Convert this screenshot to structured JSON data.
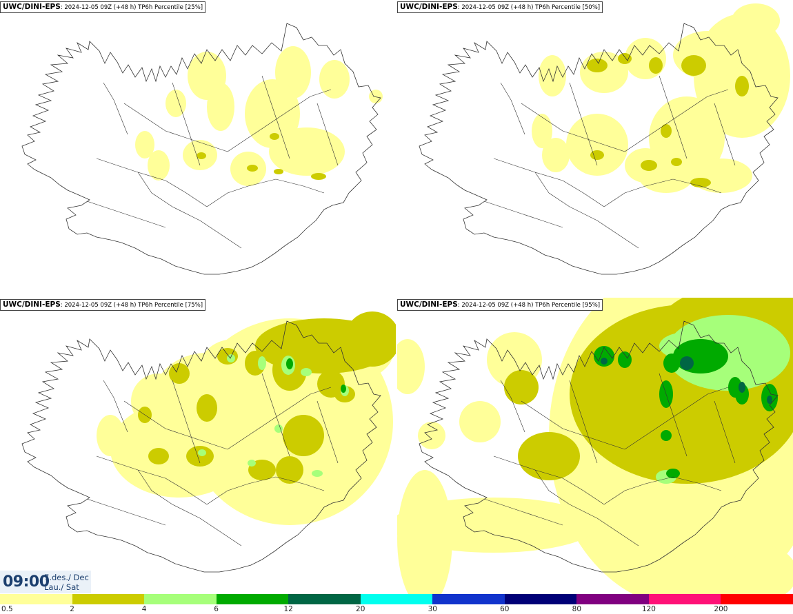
{
  "panels": [
    {
      "source": "UWC/DINI-EPS",
      "meta": ": 2024-12-05 09Z (+48 h) TP6h Percentile [25%]",
      "level": 0
    },
    {
      "source": "UWC/DINI-EPS",
      "meta": ": 2024-12-05 09Z (+48 h) TP6h Percentile [50%]",
      "level": 1
    },
    {
      "source": "UWC/DINI-EPS",
      "meta": ": 2024-12-05 09Z (+48 h) TP6h Percentile [75%]",
      "level": 2
    },
    {
      "source": "UWC/DINI-EPS",
      "meta": ": 2024-12-05 09Z (+48 h) TP6h Percentile [95%]",
      "level": 3
    }
  ],
  "valid_time": {
    "time": "09:00",
    "date_line1": "7.des./ Dec",
    "date_line2": "Lau./ Sat"
  },
  "colorbar": {
    "labels": [
      "0.5",
      "2",
      "4",
      "6",
      "12",
      "20",
      "30",
      "60",
      "80",
      "120",
      "200"
    ],
    "colors": [
      "#ffff99",
      "#cccc00",
      "#a6ff7a",
      "#00aa00",
      "#006644",
      "#00ffee",
      "#1133cc",
      "#000077",
      "#800080",
      "#ff1177",
      "#ff0000"
    ]
  },
  "map_colors": {
    "land": "#ffffff",
    "outline": "#333333",
    "sea": "#ffffff"
  }
}
